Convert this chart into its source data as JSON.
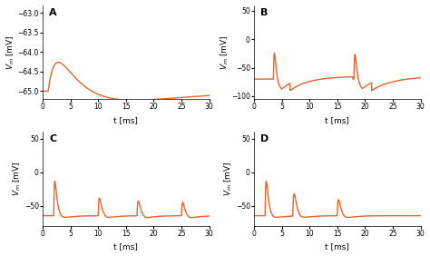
{
  "line_color": "#E8622A",
  "line_width": 1.0,
  "background_color": "#ffffff",
  "xlabel": "t [ms]",
  "xlim": [
    0,
    30
  ],
  "panels": {
    "A": {
      "label": "A",
      "ylim": [
        -65.2,
        -62.8
      ],
      "yticks": [
        -65,
        -64.5,
        -64,
        -63.5,
        -63
      ]
    },
    "B": {
      "label": "B",
      "ylim": [
        -105,
        60
      ],
      "yticks": [
        -100,
        -50,
        0,
        50
      ]
    },
    "C": {
      "label": "C",
      "ylim": [
        -80,
        60
      ],
      "yticks": [
        -50,
        0,
        50
      ]
    },
    "D": {
      "label": "D",
      "ylim": [
        -80,
        60
      ],
      "yticks": [
        -50,
        0,
        50
      ]
    }
  }
}
